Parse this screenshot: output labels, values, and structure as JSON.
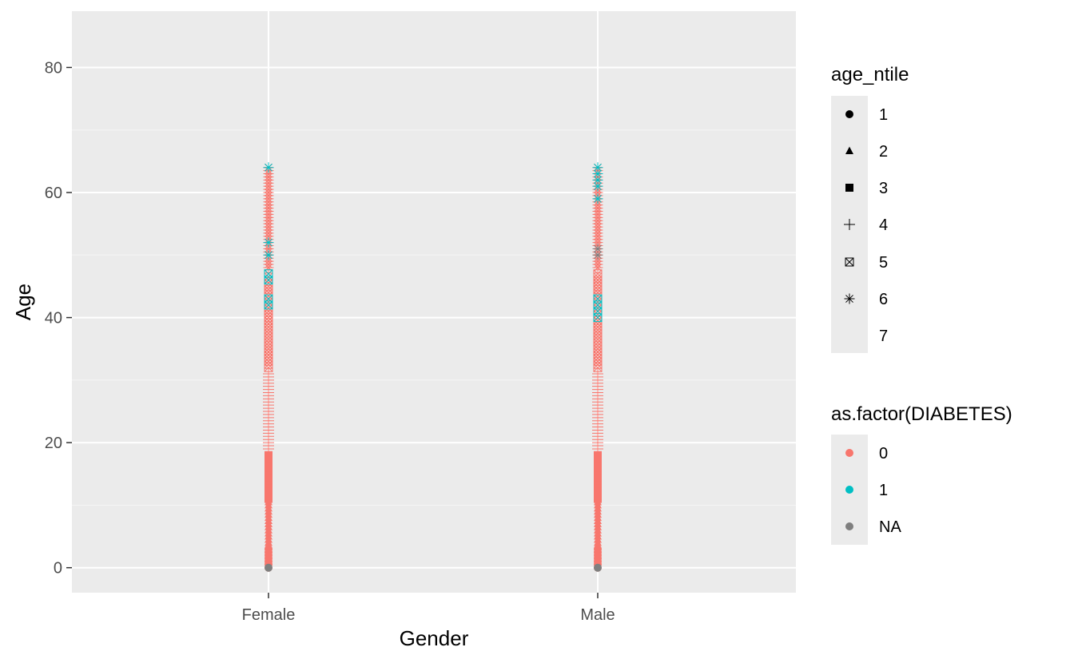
{
  "chart_data": {
    "type": "scatter",
    "title": "",
    "xlabel": "Gender",
    "ylabel": "Age",
    "categories": [
      "Female",
      "Male"
    ],
    "yticks": [
      0,
      20,
      40,
      60,
      80
    ],
    "ylim": [
      -4,
      89
    ],
    "grid": true,
    "series_note": "Each point is (Gender, Age); color = as.factor(DIABETES), shape = age_ntile",
    "points": {
      "Female": {
        "ntile_1_age_range": [
          0,
          3
        ],
        "ntile_2_age_range": [
          3,
          11
        ],
        "ntile_3_age_range": [
          11,
          18
        ],
        "ntile_4_age_range": [
          19,
          31
        ],
        "ntile_5_age_range": [
          32,
          47
        ],
        "ntile_6_age_range": [
          48,
          64
        ],
        "diabetes_1_ages": [
          42,
          43,
          46,
          47,
          50,
          52,
          64
        ],
        "na_ages": [
          0
        ]
      },
      "Male": {
        "ntile_1_age_range": [
          0,
          3
        ],
        "ntile_2_age_range": [
          3,
          11
        ],
        "ntile_3_age_range": [
          11,
          18
        ],
        "ntile_4_age_range": [
          19,
          31
        ],
        "ntile_5_age_range": [
          32,
          47
        ],
        "ntile_6_age_range": [
          48,
          64
        ],
        "diabetes_1_ages": [
          40,
          41,
          42,
          43,
          59,
          61,
          62,
          63,
          64
        ],
        "na_ages": [
          0,
          50,
          51
        ]
      }
    },
    "legends": [
      {
        "title": "age_ntile",
        "entries": [
          {
            "label": "1",
            "shape": "circle"
          },
          {
            "label": "2",
            "shape": "triangle"
          },
          {
            "label": "3",
            "shape": "square"
          },
          {
            "label": "4",
            "shape": "plus"
          },
          {
            "label": "5",
            "shape": "square-x"
          },
          {
            "label": "6",
            "shape": "asterisk"
          },
          {
            "label": "7",
            "shape": "none"
          }
        ]
      },
      {
        "title": "as.factor(DIABETES)",
        "entries": [
          {
            "label": "0",
            "color": "#f8766d"
          },
          {
            "label": "1",
            "color": "#00bfc4"
          },
          {
            "label": "NA",
            "color": "#7f7f7f"
          }
        ]
      }
    ]
  },
  "colors": {
    "panel_bg": "#ebebeb",
    "grid_major": "#ffffff",
    "grid_minor": "#f5f5f5",
    "diabetes_0": "#f8766d",
    "diabetes_1": "#00bfc4",
    "na": "#7f7f7f",
    "axis_text": "#4d4d4d",
    "title_text": "#000000"
  }
}
